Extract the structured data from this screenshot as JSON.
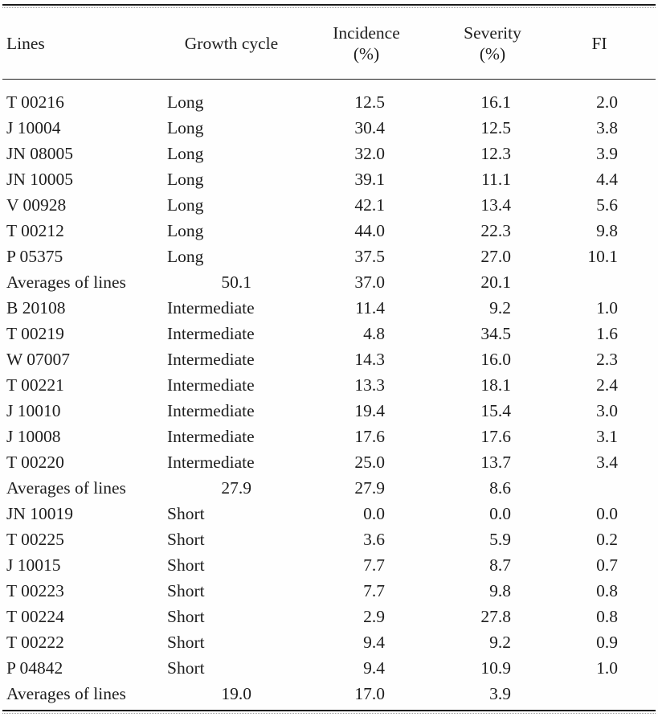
{
  "header": {
    "col_lines": "Lines",
    "col_growth_cycle": "Growth cycle",
    "col_incidence_line1": "Incidence",
    "col_incidence_line2": "(%)",
    "col_severity_line1": "Severity",
    "col_severity_line2": "(%)",
    "col_fi": "FI"
  },
  "rows": [
    {
      "line": "T 00216",
      "cycle": "Long",
      "incidence": "12.5",
      "severity": "16.1",
      "fi": "2.0"
    },
    {
      "line": "J 10004",
      "cycle": "Long",
      "incidence": "30.4",
      "severity": "12.5",
      "fi": "3.8"
    },
    {
      "line": "JN 08005",
      "cycle": "Long",
      "incidence": "32.0",
      "severity": "12.3",
      "fi": "3.9"
    },
    {
      "line": "JN 10005",
      "cycle": "Long",
      "incidence": "39.1",
      "severity": "11.1",
      "fi": "4.4"
    },
    {
      "line": "V 00928",
      "cycle": "Long",
      "incidence": "42.1",
      "severity": "13.4",
      "fi": "5.6"
    },
    {
      "line": "T 00212",
      "cycle": "Long",
      "incidence": "44.0",
      "severity": "22.3",
      "fi": "9.8"
    },
    {
      "line": "P 05375",
      "cycle": "Long",
      "incidence": "37.5",
      "severity": "27.0",
      "fi": "10.1"
    },
    {
      "line": "Averages of lines",
      "avg": "50.1",
      "incidence": "37.0",
      "severity": "20.1",
      "fi": ""
    },
    {
      "line": "B 20108",
      "cycle": "Intermediate",
      "incidence": "11.4",
      "severity": "9.2",
      "fi": "1.0"
    },
    {
      "line": "T 00219",
      "cycle": "Intermediate",
      "incidence": "4.8",
      "severity": "34.5",
      "fi": "1.6"
    },
    {
      "line": "W 07007",
      "cycle": "Intermediate",
      "incidence": "14.3",
      "severity": "16.0",
      "fi": "2.3"
    },
    {
      "line": "T 00221",
      "cycle": "Intermediate",
      "incidence": "13.3",
      "severity": "18.1",
      "fi": "2.4"
    },
    {
      "line": "J 10010",
      "cycle": "Intermediate",
      "incidence": "19.4",
      "severity": "15.4",
      "fi": "3.0"
    },
    {
      "line": "J 10008",
      "cycle": "Intermediate",
      "incidence": "17.6",
      "severity": "17.6",
      "fi": "3.1"
    },
    {
      "line": "T 00220",
      "cycle": "Intermediate",
      "incidence": "25.0",
      "severity": "13.7",
      "fi": "3.4"
    },
    {
      "line": "Averages of lines",
      "avg": "27.9",
      "incidence": "27.9",
      "severity": "8.6",
      "fi": ""
    },
    {
      "line": "JN 10019",
      "cycle": "Short",
      "incidence": "0.0",
      "severity": "0.0",
      "fi": "0.0"
    },
    {
      "line": "T 00225",
      "cycle": "Short",
      "incidence": "3.6",
      "severity": "5.9",
      "fi": "0.2"
    },
    {
      "line": "J 10015",
      "cycle": "Short",
      "incidence": "7.7",
      "severity": "8.7",
      "fi": "0.7"
    },
    {
      "line": "T 00223",
      "cycle": "Short",
      "incidence": "7.7",
      "severity": "9.8",
      "fi": "0.8"
    },
    {
      "line": "T 00224",
      "cycle": "Short",
      "incidence": "2.9",
      "severity": "27.8",
      "fi": "0.8"
    },
    {
      "line": "T 00222",
      "cycle": "Short",
      "incidence": "9.4",
      "severity": "9.2",
      "fi": "0.9"
    },
    {
      "line": "P 04842",
      "cycle": "Short",
      "incidence": "9.4",
      "severity": "10.9",
      "fi": "1.0"
    },
    {
      "line": "Averages of lines",
      "avg": "19.0",
      "incidence": "17.0",
      "severity": "3.9",
      "fi": ""
    }
  ],
  "colors": {
    "text": "#1e1e1e",
    "rule": "#1a1a1a",
    "background": "#fefefe"
  }
}
